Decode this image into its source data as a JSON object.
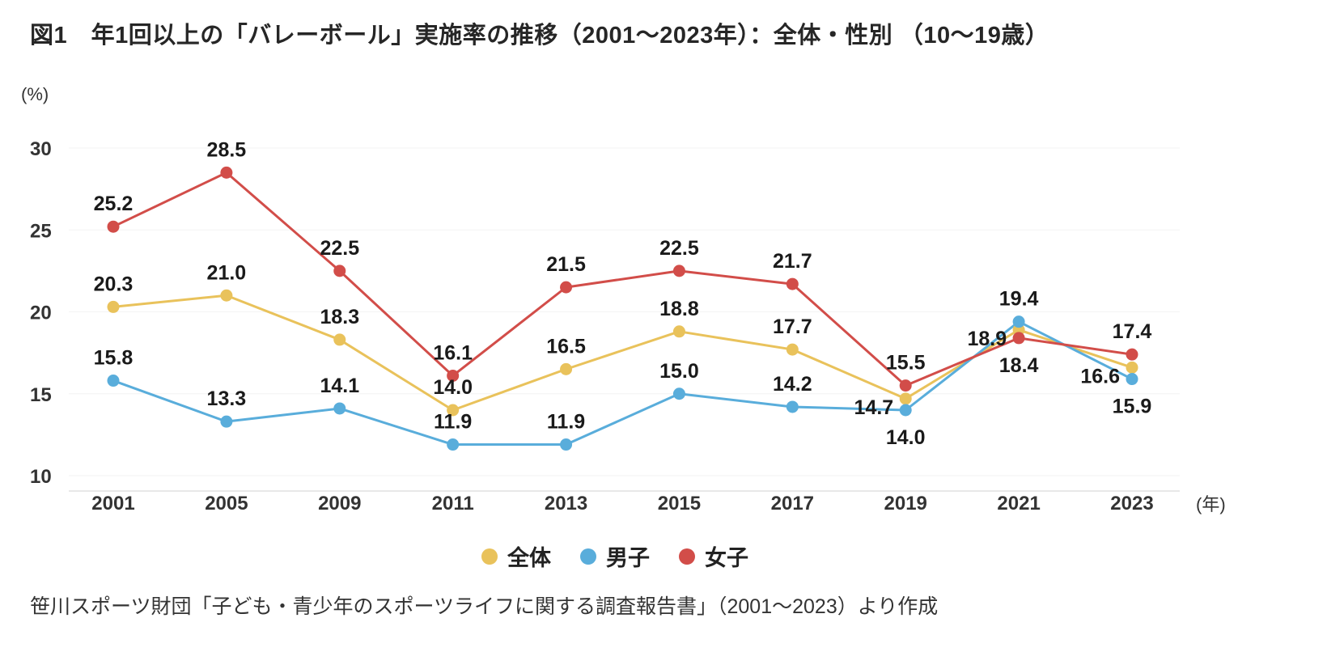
{
  "chart_data": {
    "type": "line",
    "title": "図1　年1回以上の「バレーボール」実施率の推移（2001～2023年）：全体・性別 （10～19歳）",
    "unit_y": "(%)",
    "unit_x": "(年)",
    "categories": [
      "2001",
      "2005",
      "2009",
      "2011",
      "2013",
      "2015",
      "2017",
      "2019",
      "2021",
      "2023"
    ],
    "y_ticks": [
      10,
      15,
      20,
      25,
      30
    ],
    "ylim": [
      10,
      30
    ],
    "grid": true,
    "legend_position": "bottom",
    "series": [
      {
        "key": "total",
        "name": "全体",
        "color": "#E9C25B",
        "values": [
          20.3,
          21.0,
          18.3,
          14.0,
          16.5,
          18.8,
          17.7,
          14.7,
          18.9,
          16.6
        ],
        "label_placement": [
          "above",
          "above",
          "above",
          "above",
          "above",
          "above",
          "above",
          "left",
          "left",
          "left"
        ]
      },
      {
        "key": "boys",
        "name": "男子",
        "color": "#59ADDB",
        "values": [
          15.8,
          13.3,
          14.1,
          11.9,
          11.9,
          15.0,
          14.2,
          14.0,
          19.4,
          15.9
        ],
        "label_placement": [
          "above",
          "above",
          "above",
          "above",
          "above",
          "above",
          "above",
          "below",
          "above",
          "below"
        ]
      },
      {
        "key": "girls",
        "name": "女子",
        "color": "#D24D49",
        "values": [
          25.2,
          28.5,
          22.5,
          16.1,
          21.5,
          22.5,
          21.7,
          15.5,
          18.4,
          17.4
        ],
        "label_placement": [
          "above",
          "above",
          "above",
          "above",
          "above",
          "above",
          "above",
          "above",
          "below",
          "above"
        ]
      }
    ],
    "source_note": "笹川スポーツ財団「子ども・青少年のスポーツライフに関する調査報告書」（2001～2023）より作成"
  }
}
